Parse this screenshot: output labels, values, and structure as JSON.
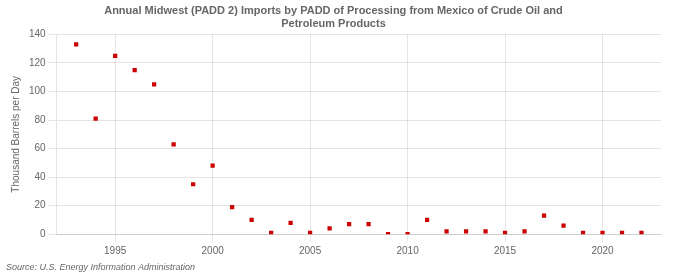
{
  "chart_data": {
    "type": "scatter",
    "title": "Annual Midwest (PADD 2) Imports by PADD of Processing from Mexico of Crude Oil and\nPetroleum Products",
    "ylabel": "Thousand Barrels per Day",
    "annotations": [
      "Source: U.S. Energy Information Administration"
    ],
    "x": [
      1993,
      1994,
      1995,
      1996,
      1997,
      1998,
      1999,
      2000,
      2001,
      2002,
      2003,
      2004,
      2005,
      2006,
      2007,
      2008,
      2009,
      2010,
      2011,
      2012,
      2013,
      2014,
      2015,
      2016,
      2017,
      2018,
      2019,
      2020,
      2021,
      2022
    ],
    "values": [
      133,
      81,
      125,
      115,
      105,
      63,
      35,
      48,
      19,
      10,
      1,
      8,
      1,
      4,
      7,
      7,
      0,
      0,
      10,
      2,
      2,
      2,
      1,
      2,
      13,
      6,
      1,
      1,
      1,
      1
    ],
    "color": "#cc0000",
    "marker": "square",
    "xlim": [
      1992,
      2023
    ],
    "xticks": [
      1995,
      2000,
      2005,
      2010,
      2015,
      2020
    ],
    "ylim": [
      0,
      140
    ],
    "yticks": [
      0,
      20,
      40,
      60,
      80,
      100,
      120,
      140
    ],
    "grid": true
  }
}
